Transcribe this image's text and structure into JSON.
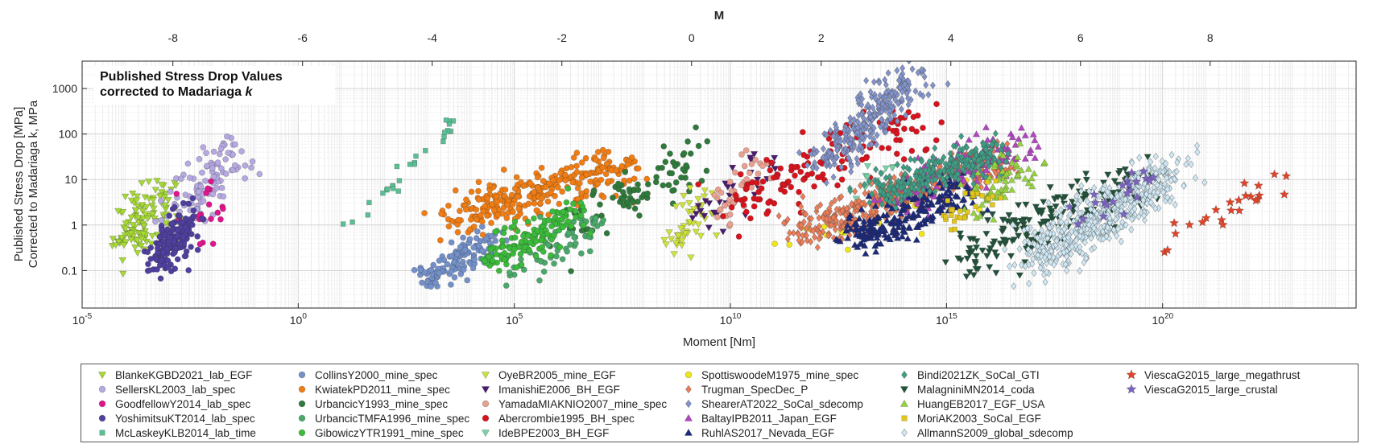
{
  "chart_data": {
    "type": "scatter",
    "title": "Published Stress Drop Values",
    "subtitle_prefix": "corrected to Madariaga ",
    "subtitle_italic": "k",
    "xlabel": "Moment [Nm]",
    "ylabel": [
      "Published Stress Drop [MPa]",
      "Corrected to Madariaga k, MPa"
    ],
    "top_xlabel": "M",
    "x_scale": "log",
    "y_scale": "log",
    "xlim": [
      1e-05,
      3e+24
    ],
    "ylim": [
      0.015,
      4000
    ],
    "grid": true,
    "legend_position": "below",
    "x_ticks": [
      {
        "v": 1e-05,
        "base": "10",
        "exp": "-5"
      },
      {
        "v": 1,
        "base": "10",
        "exp": "0"
      },
      {
        "v": 100000,
        "base": "10",
        "exp": "5"
      },
      {
        "v": 10000000000.0,
        "base": "10",
        "exp": "10"
      },
      {
        "v": 1000000000000000.0,
        "base": "10",
        "exp": "15"
      },
      {
        "v": 1e+20,
        "base": "10",
        "exp": "20"
      }
    ],
    "y_ticks": [
      {
        "v": 0.1,
        "label": "0.1"
      },
      {
        "v": 1,
        "label": "1"
      },
      {
        "v": 10,
        "label": "10"
      },
      {
        "v": 100,
        "label": "100"
      },
      {
        "v": 1000,
        "label": "1000"
      }
    ],
    "top_ticks": [
      {
        "v": -8,
        "label": "-8"
      },
      {
        "v": -6,
        "label": "-6"
      },
      {
        "v": -4,
        "label": "-4"
      },
      {
        "v": -2,
        "label": "-2"
      },
      {
        "v": 0,
        "label": "0"
      },
      {
        "v": 2,
        "label": "2"
      },
      {
        "v": 4,
        "label": "4"
      },
      {
        "v": 6,
        "label": "6"
      },
      {
        "v": 8,
        "label": "8"
      }
    ],
    "series": [
      {
        "name": "BlankeKGBD2021_lab_EGF",
        "marker": "triangle-down",
        "color": "#a6d934",
        "cx": [
          -4.15,
          -3.1
        ],
        "cy": [
          -0.35,
          0.55
        ],
        "n": 120,
        "ssx": 0.28,
        "ssy": 0.33
      },
      {
        "name": "SellersKL2003_lab_spec",
        "marker": "circle",
        "color": "#b6a8e0",
        "cx": [
          -2.8,
          -1.4
        ],
        "cy": [
          0.0,
          1.6
        ],
        "n": 110,
        "ssx": 0.3,
        "ssy": 0.25
      },
      {
        "name": "GoodfellowY2014_lab_spec",
        "marker": "circle",
        "color": "#e0148c",
        "cx": [
          -2.4,
          -2.0
        ],
        "cy": [
          -0.1,
          0.75
        ],
        "n": 20,
        "ssx": 0.2,
        "ssy": 0.2
      },
      {
        "name": "YoshimitsuKT2014_lab_spec",
        "marker": "circle",
        "color": "#4f3f9e",
        "cx": [
          -3.2,
          -2.6
        ],
        "cy": [
          -0.8,
          0.1
        ],
        "n": 170,
        "ssx": 0.2,
        "ssy": 0.2
      },
      {
        "name": "McLaskeyKLB2014_lab_time",
        "marker": "square",
        "color": "#5bbf94",
        "cx": [
          1.2,
          3.6
        ],
        "cy": [
          -0.1,
          2.3
        ],
        "n": 28,
        "ssx": 0.1,
        "ssy": 0.1
      },
      {
        "name": "CollinsY2000_mine_spec",
        "marker": "circle",
        "color": "#7390c9",
        "cx": [
          2.9,
          4.4
        ],
        "cy": [
          -1.2,
          -0.3
        ],
        "n": 120,
        "ssx": 0.22,
        "ssy": 0.18
      },
      {
        "name": "KwiatekPD2011_mine_spec",
        "marker": "circle",
        "color": "#f07d14",
        "cx": [
          3.5,
          7.5
        ],
        "cy": [
          0.1,
          1.3
        ],
        "n": 280,
        "ssx": 0.35,
        "ssy": 0.25
      },
      {
        "name": "UrbancicY1993_mine_spec",
        "marker": "circle",
        "color": "#2f7a3a",
        "cx": [
          6.5,
          9.3
        ],
        "cy": [
          -0.1,
          1.6
        ],
        "n": 90,
        "ssx": 0.28,
        "ssy": 0.25
      },
      {
        "name": "UrbancicTMFA1996_mine_spec",
        "marker": "circle",
        "color": "#4aa86a",
        "cx": [
          5.0,
          6.8
        ],
        "cy": [
          -1.0,
          0.0
        ],
        "n": 60,
        "ssx": 0.25,
        "ssy": 0.2
      },
      {
        "name": "GibowiczYTR1991_mine_spec",
        "marker": "circle",
        "color": "#3bba3b",
        "cx": [
          4.5,
          6.5
        ],
        "cy": [
          -0.8,
          0.3
        ],
        "n": 140,
        "ssx": 0.22,
        "ssy": 0.2
      },
      {
        "name": "OyeBR2005_mine_EGF",
        "marker": "triangle-down",
        "color": "#cde23a",
        "cx": [
          8.5,
          9.5
        ],
        "cy": [
          -0.6,
          0.6
        ],
        "n": 45,
        "ssx": 0.22,
        "ssy": 0.25
      },
      {
        "name": "ImanishiE2006_BH_EGF",
        "marker": "triangle-down",
        "color": "#4a1c6e",
        "cx": [
          9.3,
          10.8
        ],
        "cy": [
          0.2,
          1.3
        ],
        "n": 35,
        "ssx": 0.25,
        "ssy": 0.25
      },
      {
        "name": "YamadaMIAKNIO2007_mine_spec",
        "marker": "circle",
        "color": "#e9a090",
        "cx": [
          9.8,
          10.6
        ],
        "cy": [
          0.2,
          1.4
        ],
        "n": 40,
        "ssx": 0.2,
        "ssy": 0.2
      },
      {
        "name": "Abercrombie1995_BH_spec",
        "marker": "circle",
        "color": "#d7141e",
        "cx": [
          10.0,
          14.6
        ],
        "cy": [
          0.4,
          2.4
        ],
        "n": 130,
        "ssx": 0.3,
        "ssy": 0.3
      },
      {
        "name": "IdeBPE2003_BH_EGF",
        "marker": "triangle-down",
        "color": "#7ad3a8",
        "cx": [
          13.0,
          13.6
        ],
        "cy": [
          0.9,
          1.3
        ],
        "n": 12,
        "ssx": 0.15,
        "ssy": 0.15
      },
      {
        "name": "SpottiswoodeM1975_mine_spec",
        "marker": "circle",
        "color": "#f0e41a",
        "cx": [
          11.6,
          15.8
        ],
        "cy": [
          -0.4,
          1.0
        ],
        "n": 30,
        "ssx": 0.3,
        "ssy": 0.3
      },
      {
        "name": "Trugman_SpecDec_P",
        "marker": "diamond",
        "color": "#ee7d57",
        "cx": [
          11.6,
          16.2
        ],
        "cy": [
          -0.2,
          1.5
        ],
        "n": 420,
        "ssx": 0.3,
        "ssy": 0.2
      },
      {
        "name": "ShearerAT2022_SoCal_sdecomp",
        "marker": "diamond",
        "color": "#8394cc",
        "cx": [
          12.1,
          14.3
        ],
        "cy": [
          1.3,
          3.3
        ],
        "n": 280,
        "ssx": 0.25,
        "ssy": 0.2
      },
      {
        "name": "BaltayIPB2011_Japan_EGF",
        "marker": "triangle-up",
        "color": "#b045c0",
        "cx": [
          13.8,
          16.8
        ],
        "cy": [
          0.6,
          1.8
        ],
        "n": 130,
        "ssx": 0.3,
        "ssy": 0.25
      },
      {
        "name": "RuhlAS2017_Nevada_EGF",
        "marker": "triangle-up",
        "color": "#1d2a7a",
        "cx": [
          12.8,
          15.4
        ],
        "cy": [
          -0.3,
          0.8
        ],
        "n": 220,
        "ssx": 0.25,
        "ssy": 0.2
      },
      {
        "name": "Bindi2021ZK_SoCal_GTI",
        "marker": "diamond",
        "color": "#3d9f86",
        "cx": [
          13.4,
          16.1
        ],
        "cy": [
          0.7,
          1.6
        ],
        "n": 280,
        "ssx": 0.25,
        "ssy": 0.18
      },
      {
        "name": "MalagniniMN2014_coda",
        "marker": "triangle-down",
        "color": "#22523a",
        "cx": [
          15.0,
          19.6
        ],
        "cy": [
          -0.8,
          1.0
        ],
        "n": 170,
        "ssx": 0.3,
        "ssy": 0.3
      },
      {
        "name": "HuangEB2017_EGF_USA",
        "marker": "triangle-up",
        "color": "#96d23f",
        "cx": [
          15.6,
          17.2
        ],
        "cy": [
          0.5,
          1.5
        ],
        "n": 60,
        "ssx": 0.25,
        "ssy": 0.25
      },
      {
        "name": "MoriAK2003_SoCal_EGF",
        "marker": "square",
        "color": "#e2c61b",
        "cx": [
          15.0,
          16.2
        ],
        "cy": [
          0.0,
          1.0
        ],
        "n": 30,
        "ssx": 0.2,
        "ssy": 0.2
      },
      {
        "name": "AllmannS2009_global_sdecomp",
        "marker": "diamond",
        "color": "#cfe8f4",
        "cx": [
          17.0,
          20.3
        ],
        "cy": [
          -0.8,
          1.2
        ],
        "n": 520,
        "ssx": 0.3,
        "ssy": 0.28
      },
      {
        "name": "ViescaG2015_large_megathrust",
        "marker": "star",
        "color": "#e0452a",
        "cx": [
          19.8,
          22.8
        ],
        "cy": [
          -0.6,
          1.0
        ],
        "n": 24,
        "ssx": 0.25,
        "ssy": 0.2
      },
      {
        "name": "ViescaG2015_large_crustal",
        "marker": "star",
        "color": "#7b64c0",
        "cx": [
          18.0,
          20.1
        ],
        "cy": [
          0.2,
          1.2
        ],
        "n": 22,
        "ssx": 0.25,
        "ssy": 0.2
      }
    ]
  }
}
